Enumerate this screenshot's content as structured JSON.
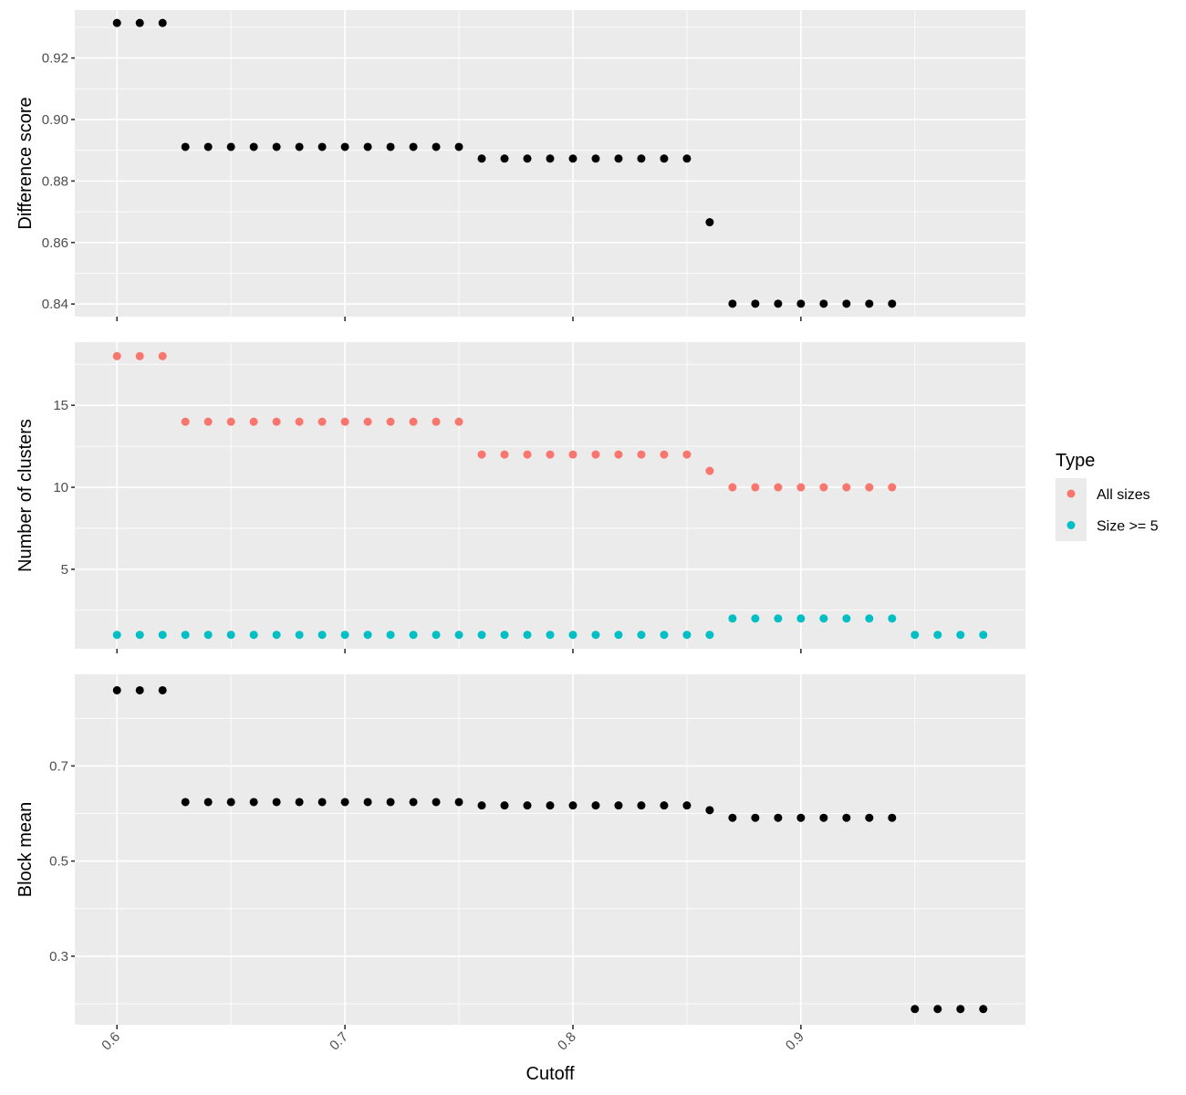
{
  "chart_data": {
    "type": "scatter",
    "xlabel": "Cutoff",
    "x_ticks": [
      0.6,
      0.7,
      0.8,
      0.9
    ],
    "x_tick_labels": [
      "0.6",
      "0.7",
      "0.8",
      "0.9"
    ],
    "xlim": [
      0.5815,
      0.9985
    ],
    "grid": true,
    "legend": {
      "title": "Type",
      "placement": "right",
      "entries": [
        {
          "label": "All sizes",
          "color": "#F8766D"
        },
        {
          "label": "Size >= 5",
          "color": "#00BFC4"
        }
      ]
    },
    "panels": [
      {
        "ylabel": "Difference score",
        "y_ticks": [
          0.84,
          0.86,
          0.88,
          0.9,
          0.92
        ],
        "y_tick_labels": [
          "0.84",
          "0.86",
          "0.88",
          "0.90",
          "0.92"
        ],
        "ylim": [
          0.8359,
          0.9356
        ],
        "series": [
          {
            "color": "#000000",
            "x": [
              0.6,
              0.61,
              0.62,
              0.63,
              0.64,
              0.65,
              0.66,
              0.67,
              0.68,
              0.69,
              0.7,
              0.71,
              0.72,
              0.73,
              0.74,
              0.75,
              0.76,
              0.77,
              0.78,
              0.79,
              0.8,
              0.81,
              0.82,
              0.83,
              0.84,
              0.85,
              0.86,
              0.87,
              0.88,
              0.89,
              0.9,
              0.91,
              0.92,
              0.93,
              0.94
            ],
            "y": [
              0.9314,
              0.9314,
              0.9314,
              0.8911,
              0.8911,
              0.8911,
              0.8911,
              0.8911,
              0.8911,
              0.8911,
              0.8911,
              0.8911,
              0.8911,
              0.8911,
              0.8911,
              0.8911,
              0.8873,
              0.8873,
              0.8873,
              0.8873,
              0.8873,
              0.8873,
              0.8873,
              0.8873,
              0.8873,
              0.8873,
              0.8666,
              0.8401,
              0.8401,
              0.8401,
              0.8401,
              0.8401,
              0.8401,
              0.8401,
              0.8401
            ]
          }
        ]
      },
      {
        "ylabel": "Number of clusters",
        "y_ticks": [
          5,
          10,
          15
        ],
        "y_tick_labels": [
          "5",
          "10",
          "15"
        ],
        "ylim": [
          0.15,
          18.85
        ],
        "series": [
          {
            "name": "All sizes",
            "color": "#F8766D",
            "x": [
              0.6,
              0.61,
              0.62,
              0.63,
              0.64,
              0.65,
              0.66,
              0.67,
              0.68,
              0.69,
              0.7,
              0.71,
              0.72,
              0.73,
              0.74,
              0.75,
              0.76,
              0.77,
              0.78,
              0.79,
              0.8,
              0.81,
              0.82,
              0.83,
              0.84,
              0.85,
              0.86,
              0.87,
              0.88,
              0.89,
              0.9,
              0.91,
              0.92,
              0.93,
              0.94
            ],
            "y": [
              18,
              18,
              18,
              14,
              14,
              14,
              14,
              14,
              14,
              14,
              14,
              14,
              14,
              14,
              14,
              14,
              12,
              12,
              12,
              12,
              12,
              12,
              12,
              12,
              12,
              12,
              11,
              10,
              10,
              10,
              10,
              10,
              10,
              10,
              10
            ]
          },
          {
            "name": "Size >= 5",
            "color": "#00BFC4",
            "x": [
              0.6,
              0.61,
              0.62,
              0.63,
              0.64,
              0.65,
              0.66,
              0.67,
              0.68,
              0.69,
              0.7,
              0.71,
              0.72,
              0.73,
              0.74,
              0.75,
              0.76,
              0.77,
              0.78,
              0.79,
              0.8,
              0.81,
              0.82,
              0.83,
              0.84,
              0.85,
              0.86,
              0.87,
              0.88,
              0.89,
              0.9,
              0.91,
              0.92,
              0.93,
              0.94,
              0.95,
              0.96,
              0.97,
              0.98
            ],
            "y": [
              1,
              1,
              1,
              1,
              1,
              1,
              1,
              1,
              1,
              1,
              1,
              1,
              1,
              1,
              1,
              1,
              1,
              1,
              1,
              1,
              1,
              1,
              1,
              1,
              1,
              1,
              1,
              2,
              2,
              2,
              2,
              2,
              2,
              2,
              2,
              1,
              1,
              1,
              1
            ]
          }
        ]
      },
      {
        "ylabel": "Block mean",
        "y_ticks": [
          0.3,
          0.5,
          0.7
        ],
        "y_tick_labels": [
          "0.3",
          "0.5",
          "0.7"
        ],
        "ylim": [
          0.156,
          0.8925
        ],
        "series": [
          {
            "color": "#000000",
            "x": [
              0.6,
              0.61,
              0.62,
              0.63,
              0.64,
              0.65,
              0.66,
              0.67,
              0.68,
              0.69,
              0.7,
              0.71,
              0.72,
              0.73,
              0.74,
              0.75,
              0.76,
              0.77,
              0.78,
              0.79,
              0.8,
              0.81,
              0.82,
              0.83,
              0.84,
              0.85,
              0.86,
              0.87,
              0.88,
              0.89,
              0.9,
              0.91,
              0.92,
              0.93,
              0.94,
              0.95,
              0.96,
              0.97,
              0.98
            ],
            "y": [
              0.859,
              0.859,
              0.859,
              0.624,
              0.624,
              0.624,
              0.624,
              0.624,
              0.624,
              0.624,
              0.624,
              0.624,
              0.624,
              0.624,
              0.624,
              0.624,
              0.617,
              0.617,
              0.617,
              0.617,
              0.617,
              0.617,
              0.617,
              0.617,
              0.617,
              0.617,
              0.607,
              0.591,
              0.591,
              0.591,
              0.591,
              0.591,
              0.591,
              0.591,
              0.591,
              0.189,
              0.189,
              0.189,
              0.189
            ]
          }
        ]
      }
    ]
  }
}
